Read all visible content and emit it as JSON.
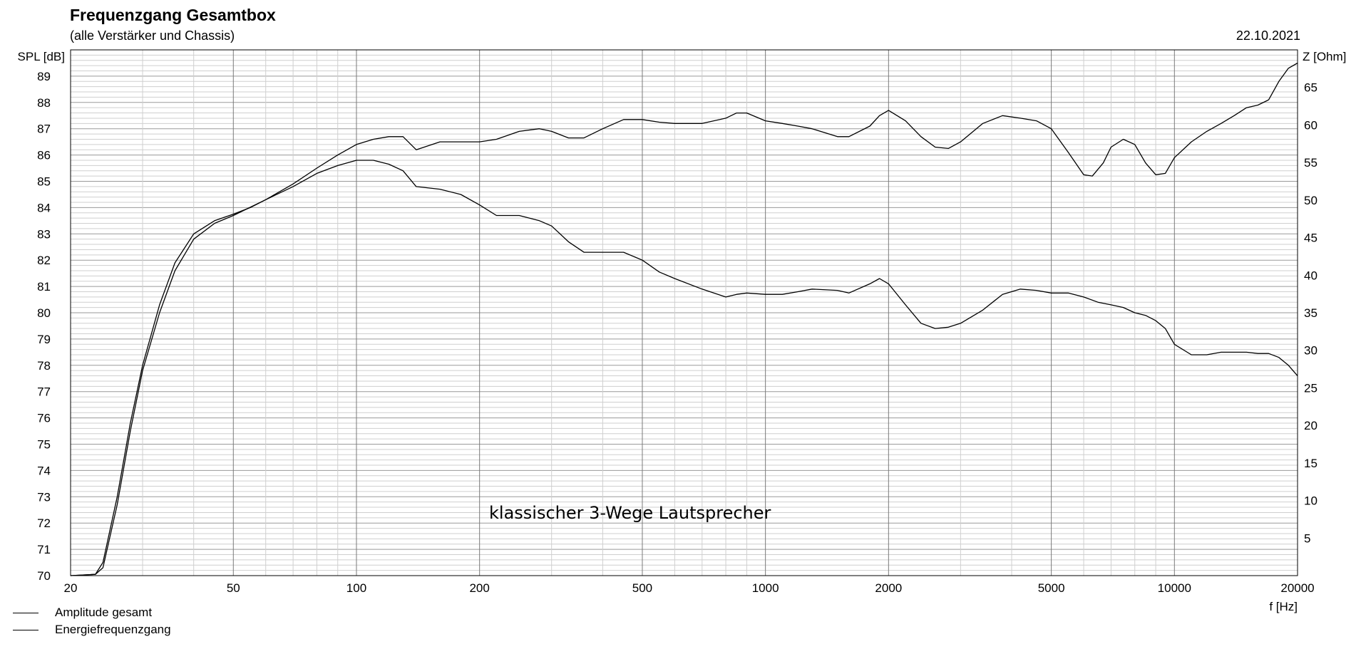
{
  "header": {
    "title": "Frequenzgang Gesamtbox",
    "subtitle": "(alle Verstärker und Chassis)",
    "date": "22.10.2021"
  },
  "annotation": "klassischer 3-Wege Lautsprecher",
  "legend": [
    {
      "label": "Amplitude gesamt"
    },
    {
      "label": "Energiefrequenzgang"
    }
  ],
  "colors": {
    "line": "#000000",
    "grid_major": "#9a9a9a",
    "grid_minor": "#cfcfcf",
    "background": "#ffffff"
  },
  "chart_data": {
    "type": "line",
    "title": "Frequenzgang Gesamtbox",
    "subtitle": "(alle Verstärker und Chassis)",
    "xlabel": "f [Hz]",
    "ylabel": "SPL [dB]",
    "y2label": "Z [Ohm]",
    "xscale": "log",
    "xlim": [
      20,
      20000
    ],
    "ylim": [
      70,
      90
    ],
    "y2lim": [
      0,
      70
    ],
    "x_ticks": [
      20,
      50,
      100,
      200,
      500,
      1000,
      2000,
      5000,
      10000,
      20000
    ],
    "y_ticks": [
      70,
      71,
      72,
      73,
      74,
      75,
      76,
      77,
      78,
      79,
      80,
      81,
      82,
      83,
      84,
      85,
      86,
      87,
      88,
      89
    ],
    "y2_ticks": [
      5,
      10,
      15,
      20,
      25,
      30,
      35,
      40,
      45,
      50,
      55,
      60,
      65
    ],
    "grid": true,
    "legend_position": "bottom-left",
    "series": [
      {
        "name": "Amplitude gesamt",
        "x": [
          20,
          23,
          24,
          26,
          28,
          30,
          33,
          36,
          40,
          45,
          50,
          55,
          60,
          70,
          80,
          90,
          100,
          110,
          120,
          130,
          140,
          160,
          180,
          200,
          220,
          250,
          280,
          300,
          330,
          360,
          400,
          450,
          500,
          550,
          600,
          700,
          800,
          850,
          900,
          1000,
          1100,
          1200,
          1300,
          1500,
          1600,
          1800,
          1900,
          2000,
          2200,
          2400,
          2600,
          2800,
          3000,
          3400,
          3800,
          4200,
          4600,
          5000,
          5500,
          6000,
          6300,
          6700,
          7000,
          7500,
          8000,
          8500,
          9000,
          9500,
          10000,
          11000,
          12000,
          13000,
          14000,
          15000,
          16000,
          17000,
          18000,
          19000,
          20000
        ],
        "values": [
          70.0,
          70.05,
          70.5,
          73.0,
          75.8,
          78.0,
          80.3,
          81.9,
          83.0,
          83.5,
          83.75,
          84.0,
          84.3,
          84.9,
          85.5,
          86.0,
          86.4,
          86.6,
          86.7,
          86.7,
          86.2,
          86.5,
          86.5,
          86.5,
          86.6,
          86.9,
          87.0,
          86.9,
          86.65,
          86.65,
          87.0,
          87.35,
          87.35,
          87.25,
          87.2,
          87.2,
          87.4,
          87.6,
          87.6,
          87.3,
          87.2,
          87.1,
          87.0,
          86.7,
          86.7,
          87.1,
          87.5,
          87.7,
          87.3,
          86.7,
          86.3,
          86.25,
          86.5,
          87.2,
          87.5,
          87.4,
          87.3,
          87.0,
          86.1,
          85.25,
          85.2,
          85.7,
          86.3,
          86.6,
          86.4,
          85.7,
          85.25,
          85.3,
          85.9,
          86.5,
          86.9,
          87.2,
          87.5,
          87.8,
          87.9,
          88.1,
          88.8,
          89.3,
          89.5
        ]
      },
      {
        "name": "Energiefrequenzgang",
        "x": [
          20,
          23,
          24,
          26,
          28,
          30,
          33,
          36,
          40,
          45,
          50,
          60,
          70,
          80,
          90,
          100,
          110,
          120,
          130,
          140,
          160,
          180,
          200,
          220,
          250,
          280,
          300,
          330,
          360,
          400,
          450,
          500,
          550,
          600,
          700,
          800,
          850,
          900,
          1000,
          1100,
          1200,
          1300,
          1500,
          1600,
          1800,
          1900,
          2000,
          2200,
          2400,
          2600,
          2800,
          3000,
          3400,
          3800,
          4200,
          4600,
          5000,
          5500,
          6000,
          6500,
          7000,
          7500,
          8000,
          8500,
          9000,
          9500,
          10000,
          11000,
          12000,
          13000,
          14000,
          15000,
          16000,
          17000,
          18000,
          19000,
          20000
        ],
        "values": [
          70.0,
          70.05,
          70.3,
          72.7,
          75.5,
          77.8,
          80.0,
          81.6,
          82.8,
          83.4,
          83.7,
          84.3,
          84.8,
          85.3,
          85.6,
          85.8,
          85.8,
          85.65,
          85.4,
          84.8,
          84.7,
          84.5,
          84.1,
          83.7,
          83.7,
          83.5,
          83.3,
          82.7,
          82.3,
          82.3,
          82.3,
          82.0,
          81.55,
          81.3,
          80.9,
          80.6,
          80.7,
          80.75,
          80.7,
          80.7,
          80.8,
          80.9,
          80.85,
          80.75,
          81.1,
          81.3,
          81.1,
          80.3,
          79.6,
          79.4,
          79.45,
          79.6,
          80.1,
          80.7,
          80.9,
          80.85,
          80.75,
          80.75,
          80.6,
          80.4,
          80.3,
          80.2,
          80.0,
          79.9,
          79.7,
          79.4,
          78.8,
          78.4,
          78.4,
          78.5,
          78.5,
          78.5,
          78.45,
          78.45,
          78.3,
          78.0,
          77.6
        ]
      }
    ]
  },
  "axes": {
    "y_label": "SPL [dB]",
    "y2_label": "Z [Ohm]",
    "x_label": "f [Hz]"
  }
}
